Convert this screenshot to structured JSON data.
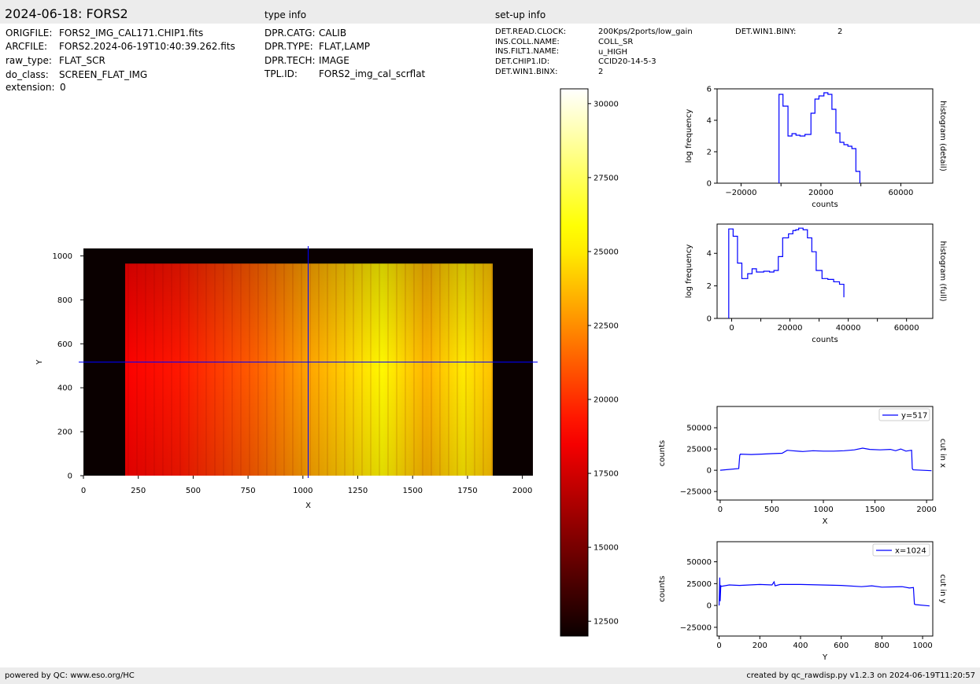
{
  "header": {
    "title": "2024-06-18: FORS2",
    "type_info_label": "type info",
    "setup_info_label": "set-up info"
  },
  "file_info": [
    {
      "key": "ORIGFILE:",
      "value": "FORS2_IMG_CAL171.CHIP1.fits"
    },
    {
      "key": "ARCFILE:",
      "value": "FORS2.2024-06-19T10:40:39.262.fits"
    },
    {
      "key": "raw_type:",
      "value": "FLAT_SCR"
    },
    {
      "key": "do_class:",
      "value": "SCREEN_FLAT_IMG"
    },
    {
      "key": "extension:",
      "value": "0"
    }
  ],
  "type_info": [
    {
      "key": "DPR.CATG:",
      "value": "CALIB"
    },
    {
      "key": "DPR.TYPE:",
      "value": "FLAT,LAMP"
    },
    {
      "key": "DPR.TECH:",
      "value": "IMAGE"
    },
    {
      "key": "TPL.ID:",
      "value": "FORS2_img_cal_scrflat"
    }
  ],
  "setup_info": [
    {
      "key": "DET.READ.CLOCK:",
      "value": "200Kps/2ports/low_gain"
    },
    {
      "key": "INS.COLL.NAME:",
      "value": "COLL_SR"
    },
    {
      "key": "INS.FILT1.NAME:",
      "value": "u_HIGH"
    },
    {
      "key": "DET.CHIP1.ID:",
      "value": "CCID20-14-5-3"
    },
    {
      "key": "DET.WIN1.BINX:",
      "value": "2"
    }
  ],
  "setup_info_extra": {
    "key": "DET.WIN1.BINY:",
    "value": "2"
  },
  "footer": {
    "left": "powered by QC: www.eso.org/HC",
    "right": "created by qc_rawdisp.py v1.2.3 on 2024-06-19T11:20:57"
  },
  "colors": {
    "line": "#0000ff",
    "axis": "#000000",
    "bar_bg": "#ececec"
  },
  "chart_data": [
    {
      "type": "heatmap",
      "name": "image",
      "xlabel": "X",
      "ylabel": "Y",
      "xlim": [
        0,
        2048
      ],
      "ylim": [
        0,
        1034
      ],
      "xticks": [
        0,
        250,
        500,
        750,
        1000,
        1250,
        1500,
        1750,
        2000
      ],
      "yticks": [
        0,
        200,
        400,
        600,
        800,
        1000
      ],
      "illuminated_x": [
        190,
        1865
      ],
      "illuminated_y": [
        0,
        965
      ],
      "crosshair": {
        "x": 1024,
        "y": 517
      },
      "colormap": "hot"
    },
    {
      "type": "heatmap",
      "name": "colorbar",
      "range": [
        12000,
        30500
      ],
      "ticks": [
        12500,
        15000,
        17500,
        20000,
        22500,
        25000,
        27500,
        30000
      ],
      "tick_labels": [
        "12500",
        "15000",
        "17500",
        "20000",
        "22500",
        "25000",
        "27500",
        "30000"
      ]
    },
    {
      "type": "line",
      "name": "histogram-detail",
      "xlabel": "counts",
      "ylabel": "log frequency",
      "side_label": "histogram (detail)",
      "xlim": [
        -32000,
        76000
      ],
      "ylim": [
        0,
        6
      ],
      "xticks": [
        -20000,
        20000,
        60000
      ],
      "yticks": [
        0,
        2,
        4,
        6
      ],
      "x": [
        -1000,
        1000,
        3500,
        5500,
        7500,
        9500,
        12000,
        15000,
        17000,
        19000,
        21500,
        23500,
        25500,
        27500,
        29500,
        31500,
        33500,
        35500,
        37500,
        39500
      ],
      "y": [
        5.65,
        4.9,
        3.0,
        3.15,
        3.05,
        3.0,
        3.1,
        4.45,
        5.35,
        5.55,
        5.75,
        5.65,
        4.7,
        3.2,
        2.6,
        2.45,
        2.35,
        2.2,
        0.75,
        0.0
      ]
    },
    {
      "type": "line",
      "name": "histogram-full",
      "xlabel": "counts",
      "ylabel": "log frequency",
      "side_label": "histogram (full)",
      "xlim": [
        -5000,
        69000
      ],
      "ylim": [
        0,
        5.8
      ],
      "xticks": [
        0,
        20000,
        40000,
        60000
      ],
      "yticks": [
        0,
        2,
        4
      ],
      "x": [
        -1000,
        500,
        2000,
        3500,
        5500,
        7000,
        8500,
        11000,
        13000,
        14500,
        16000,
        17500,
        19500,
        21000,
        22000,
        23000,
        24500,
        26000,
        27500,
        29000,
        31000,
        33000,
        35000,
        37000,
        38500
      ],
      "y": [
        5.5,
        5.05,
        3.4,
        2.45,
        2.75,
        3.05,
        2.85,
        2.9,
        2.85,
        2.95,
        3.8,
        4.95,
        5.2,
        5.4,
        5.45,
        5.55,
        5.45,
        4.95,
        4.1,
        2.95,
        2.45,
        2.4,
        2.25,
        2.1,
        1.3
      ]
    },
    {
      "type": "line",
      "name": "cut-in-x",
      "xlabel": "X",
      "ylabel": "counts",
      "side_label": "cut in x",
      "legend": "y=517",
      "legend_position": "upper right",
      "xlim": [
        -30,
        2060
      ],
      "ylim": [
        -35000,
        75000
      ],
      "xticks": [
        0,
        500,
        1000,
        1500,
        2000
      ],
      "yticks": [
        -25000,
        0,
        25000,
        50000
      ],
      "x": [
        0,
        180,
        190,
        195,
        300,
        400,
        500,
        600,
        650,
        700,
        800,
        900,
        1000,
        1100,
        1200,
        1300,
        1380,
        1450,
        1550,
        1650,
        1700,
        1750,
        1800,
        1855,
        1862,
        1870,
        2048
      ],
      "y": [
        0,
        2000,
        17500,
        19000,
        18500,
        19000,
        19500,
        20000,
        23500,
        23000,
        22000,
        23000,
        22500,
        22500,
        23000,
        24000,
        26000,
        24500,
        24000,
        24500,
        23000,
        25000,
        22500,
        23500,
        2000,
        500,
        -500
      ]
    },
    {
      "type": "line",
      "name": "cut-in-y",
      "xlabel": "Y",
      "ylabel": "counts",
      "side_label": "cut in y",
      "legend": "x=1024",
      "legend_position": "upper right",
      "xlim": [
        -10,
        1050
      ],
      "ylim": [
        -35000,
        73000
      ],
      "xticks": [
        0,
        200,
        400,
        600,
        800,
        1000
      ],
      "yticks": [
        -25000,
        0,
        25000,
        50000
      ],
      "x": [
        0,
        3,
        5,
        8,
        12,
        50,
        100,
        150,
        200,
        260,
        270,
        275,
        300,
        400,
        500,
        600,
        700,
        750,
        800,
        900,
        935,
        955,
        960,
        965,
        1034
      ],
      "y": [
        0,
        32000,
        5000,
        22500,
        22000,
        23500,
        23000,
        23500,
        24000,
        23500,
        27000,
        22500,
        24000,
        24000,
        23500,
        23000,
        21500,
        22500,
        21000,
        21500,
        20000,
        20500,
        1500,
        1000,
        -500
      ]
    }
  ]
}
